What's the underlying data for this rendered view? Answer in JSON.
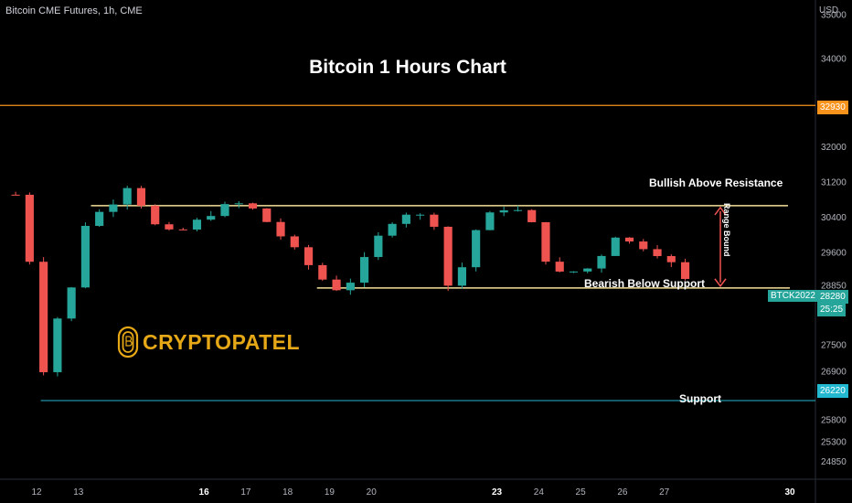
{
  "header": {
    "symbol_line": "Bitcoin CME Futures, 1h, CME",
    "currency": "USD"
  },
  "chart_title": "Bitcoin 1 Hours Chart",
  "logo": {
    "text": "CRYPTOPATEL",
    "icon": "bitcoin-coin-icon"
  },
  "annotations": {
    "resistance_text": "Bullish Above Resistance",
    "support_text_range": "Bearish Below Support",
    "support_text_lower": "Support",
    "range_label": "Range Bound"
  },
  "price_tags": {
    "symbol": "BTCK2022",
    "last_price": "28280",
    "countdown": "25:25",
    "upper_level": "32930",
    "lower_level": "26220"
  },
  "colors": {
    "background": "#000000",
    "up": "#26a69a",
    "down": "#ef5350",
    "range_lines": "#f5e19a",
    "upper_level_line": "#f7931a",
    "lower_level_line": "#22b8cf",
    "range_arrow": "#ef5350",
    "logo": "#e6a817"
  },
  "chart_data": {
    "type": "candlestick",
    "title": "Bitcoin 1 Hours Chart",
    "y_ticks": [
      35000,
      34000,
      32000,
      31200,
      30400,
      29600,
      28850,
      27500,
      26900,
      25800,
      25300,
      24850
    ],
    "y_range": [
      24600,
      35200
    ],
    "x_ticks": [
      {
        "label": "12",
        "day": 12,
        "bold": false
      },
      {
        "label": "13",
        "day": 13,
        "bold": false
      },
      {
        "label": "16",
        "day": 16,
        "bold": true
      },
      {
        "label": "17",
        "day": 17,
        "bold": false
      },
      {
        "label": "18",
        "day": 18,
        "bold": false
      },
      {
        "label": "19",
        "day": 19,
        "bold": false
      },
      {
        "label": "20",
        "day": 20,
        "bold": false
      },
      {
        "label": "23",
        "day": 23,
        "bold": true
      },
      {
        "label": "24",
        "day": 24,
        "bold": false
      },
      {
        "label": "25",
        "day": 25,
        "bold": false
      },
      {
        "label": "26",
        "day": 26,
        "bold": false
      },
      {
        "label": "27",
        "day": 27,
        "bold": false
      },
      {
        "label": "30",
        "day": 30,
        "bold": true
      }
    ],
    "levels": {
      "resistance": 30650,
      "support": 28780,
      "upper": 32930,
      "lower": 26220
    },
    "price_path": [
      [
        11.5,
        30900
      ],
      [
        11.8,
        29800
      ],
      [
        12.0,
        27500
      ],
      [
        12.1,
        26400
      ],
      [
        12.25,
        27600
      ],
      [
        12.5,
        28100
      ],
      [
        12.9,
        28900
      ],
      [
        13.2,
        30400
      ],
      [
        13.5,
        30500
      ],
      [
        13.9,
        30800
      ],
      [
        14.2,
        31150
      ],
      [
        14.5,
        30700
      ],
      [
        14.9,
        30100
      ],
      [
        15.3,
        30000
      ],
      [
        15.7,
        30200
      ],
      [
        16.0,
        30400
      ],
      [
        16.4,
        30600
      ],
      [
        16.8,
        30700
      ],
      [
        17.2,
        30550
      ],
      [
        17.6,
        30200
      ],
      [
        18.0,
        29800
      ],
      [
        18.4,
        29400
      ],
      [
        18.8,
        29000
      ],
      [
        19.2,
        28750
      ],
      [
        19.6,
        29000
      ],
      [
        20.0,
        29700
      ],
      [
        20.4,
        30250
      ],
      [
        20.8,
        30500
      ],
      [
        21.2,
        30400
      ],
      [
        21.6,
        30200
      ],
      [
        21.8,
        28800
      ],
      [
        22.2,
        29300
      ],
      [
        22.5,
        30100
      ],
      [
        22.9,
        30500
      ],
      [
        23.3,
        30650
      ],
      [
        23.7,
        30400
      ],
      [
        24.0,
        30000
      ],
      [
        24.3,
        29000
      ],
      [
        24.7,
        29200
      ],
      [
        25.0,
        29100
      ],
      [
        25.4,
        29400
      ],
      [
        25.8,
        30000
      ],
      [
        26.2,
        29800
      ],
      [
        26.6,
        29700
      ],
      [
        26.9,
        29550
      ],
      [
        27.2,
        29300
      ],
      [
        27.5,
        28950
      ],
      [
        27.75,
        28280
      ]
    ],
    "candle_hours": 8,
    "last_price": 28280
  }
}
